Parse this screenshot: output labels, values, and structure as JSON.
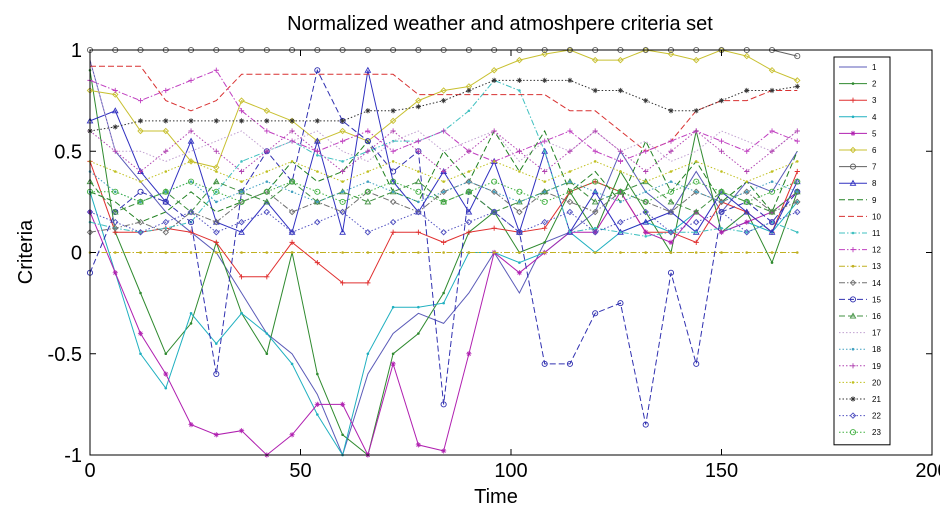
{
  "chart_data": {
    "type": "line",
    "title": "Normalized weather and atmoshpere criteria set",
    "xlabel": "Time",
    "ylabel": "Criteria",
    "xlim": [
      0,
      200
    ],
    "ylim": [
      -1,
      1
    ],
    "xticks": [
      0,
      50,
      100,
      150,
      200
    ],
    "yticks": [
      -1,
      -0.5,
      0,
      0.5,
      1
    ],
    "xtick_labels": [
      "0",
      "50",
      "100",
      "150",
      "200"
    ],
    "ytick_labels": [
      "-1",
      "-0.5",
      "0",
      "0.5",
      "1"
    ],
    "grid": false,
    "legend_position": "right",
    "x": [
      0,
      6,
      12,
      18,
      24,
      30,
      36,
      42,
      48,
      54,
      60,
      66,
      72,
      78,
      84,
      90,
      96,
      102,
      108,
      114,
      120,
      126,
      132,
      138,
      144,
      150,
      156,
      162,
      168
    ],
    "series": [
      {
        "name": "1",
        "color": "#5b5bb8",
        "marker": "none",
        "dash": "solid",
        "values": [
          0.95,
          0.5,
          0.35,
          0.2,
          0.1,
          0.0,
          -0.2,
          -0.4,
          -0.5,
          -0.7,
          -1.0,
          -0.6,
          -0.4,
          -0.3,
          -0.35,
          -0.2,
          0.0,
          -0.2,
          0.05,
          0.1,
          0.2,
          0.5,
          0.3,
          0.2,
          0.4,
          0.2,
          0.35,
          0.3,
          0.5
        ]
      },
      {
        "name": "2",
        "color": "#2f8a2f",
        "marker": "point",
        "dash": "solid",
        "values": [
          0.9,
          0.1,
          -0.2,
          -0.5,
          -0.35,
          0.05,
          -0.3,
          -0.5,
          0.0,
          -0.6,
          -0.9,
          -1.0,
          -0.5,
          -0.4,
          -0.2,
          0.1,
          0.2,
          0.0,
          0.05,
          0.3,
          0.1,
          0.4,
          0.2,
          0.0,
          0.6,
          0.1,
          0.2,
          -0.05,
          0.3
        ]
      },
      {
        "name": "3",
        "color": "#e03030",
        "marker": "plus",
        "dash": "solid",
        "values": [
          0.45,
          0.1,
          0.1,
          0.12,
          0.1,
          0.05,
          -0.12,
          -0.12,
          0.05,
          -0.05,
          -0.15,
          -0.15,
          0.1,
          0.1,
          0.05,
          0.1,
          0.12,
          0.1,
          0.12,
          0.3,
          0.35,
          0.3,
          0.1,
          0.1,
          0.05,
          0.25,
          0.2,
          0.1,
          0.4
        ]
      },
      {
        "name": "4",
        "color": "#20b0c0",
        "marker": "point",
        "dash": "solid",
        "values": [
          0.3,
          -0.1,
          -0.5,
          -0.67,
          -0.3,
          -0.45,
          -0.3,
          -0.4,
          -0.55,
          -0.8,
          -1.0,
          -0.5,
          -0.27,
          -0.27,
          -0.25,
          0.0,
          0.0,
          -0.05,
          0.0,
          0.1,
          0.0,
          0.1,
          0.15,
          0.1,
          0.2,
          0.1,
          0.15,
          0.1,
          0.25
        ]
      },
      {
        "name": "5",
        "color": "#b020b0",
        "marker": "star",
        "dash": "solid",
        "values": [
          0.2,
          -0.1,
          -0.4,
          -0.6,
          -0.85,
          -0.9,
          -0.88,
          -1.0,
          -0.9,
          -0.75,
          -0.75,
          -1.0,
          -0.55,
          -0.95,
          -0.98,
          -0.5,
          0.0,
          -0.1,
          0.0,
          0.1,
          0.1,
          0.3,
          0.1,
          0.05,
          0.2,
          0.1,
          0.15,
          0.2,
          0.3
        ]
      },
      {
        "name": "6",
        "color": "#c8c030",
        "marker": "diamond",
        "dash": "solid",
        "values": [
          0.8,
          0.78,
          0.6,
          0.6,
          0.45,
          0.42,
          0.75,
          0.7,
          0.65,
          0.55,
          0.6,
          0.55,
          0.65,
          0.75,
          0.8,
          0.82,
          0.9,
          0.95,
          0.98,
          1.0,
          0.95,
          0.95,
          1.0,
          0.98,
          0.95,
          1.0,
          0.97,
          0.9,
          0.85
        ]
      },
      {
        "name": "7",
        "color": "#606060",
        "marker": "circle",
        "dash": "solid",
        "values": [
          1.0,
          1.0,
          1.0,
          1.0,
          1.0,
          1.0,
          1.0,
          1.0,
          1.0,
          1.0,
          1.0,
          1.0,
          1.0,
          1.0,
          1.0,
          1.0,
          1.0,
          1.0,
          1.0,
          1.0,
          1.0,
          1.0,
          1.0,
          1.0,
          1.0,
          1.0,
          1.0,
          1.0,
          0.97
        ]
      },
      {
        "name": "8",
        "color": "#3030c0",
        "marker": "triangle",
        "dash": "solid",
        "values": [
          0.65,
          0.7,
          0.4,
          0.25,
          0.55,
          0.15,
          0.1,
          0.25,
          0.1,
          0.55,
          0.1,
          0.9,
          0.35,
          0.2,
          0.4,
          0.2,
          0.45,
          0.1,
          0.5,
          0.1,
          0.3,
          0.1,
          0.15,
          0.2,
          0.1,
          0.3,
          0.2,
          0.1,
          0.35
        ]
      },
      {
        "name": "9",
        "color": "#208020",
        "marker": "none",
        "dash": "dashed",
        "values": [
          0.3,
          0.25,
          0.15,
          0.2,
          0.3,
          0.2,
          0.25,
          0.3,
          0.45,
          0.35,
          0.4,
          0.55,
          0.3,
          0.25,
          0.5,
          0.35,
          0.6,
          0.4,
          0.6,
          0.3,
          0.4,
          0.25,
          0.55,
          0.3,
          0.45,
          0.25,
          0.35,
          0.2,
          0.5
        ]
      },
      {
        "name": "10",
        "color": "#d83030",
        "marker": "none",
        "dash": "dashed",
        "values": [
          0.92,
          0.92,
          0.92,
          0.75,
          0.7,
          0.75,
          0.88,
          0.88,
          0.88,
          0.88,
          0.88,
          0.88,
          0.88,
          0.78,
          0.78,
          0.78,
          0.78,
          0.78,
          0.78,
          0.7,
          0.7,
          0.6,
          0.5,
          0.55,
          0.7,
          0.75,
          0.75,
          0.8,
          0.8
        ]
      },
      {
        "name": "11",
        "color": "#40c0c0",
        "marker": "point",
        "dash": "dashdot",
        "values": [
          0.15,
          0.12,
          0.1,
          0.12,
          0.15,
          0.3,
          0.45,
          0.5,
          0.55,
          0.48,
          0.45,
          0.5,
          0.55,
          0.55,
          0.6,
          0.7,
          0.85,
          0.8,
          0.5,
          0.1,
          0.12,
          0.1,
          0.08,
          0.1,
          0.1,
          0.12,
          0.1,
          0.15,
          0.1
        ]
      },
      {
        "name": "12",
        "color": "#c040c0",
        "marker": "plus",
        "dash": "dashdot",
        "values": [
          0.85,
          0.8,
          0.75,
          0.8,
          0.85,
          0.9,
          0.7,
          0.6,
          0.55,
          0.5,
          0.55,
          0.6,
          0.5,
          0.55,
          0.6,
          0.5,
          0.45,
          0.5,
          0.55,
          0.6,
          0.5,
          0.45,
          0.5,
          0.55,
          0.6,
          0.55,
          0.5,
          0.6,
          0.55
        ]
      },
      {
        "name": "13",
        "color": "#c0b020",
        "marker": "point",
        "dash": "dashdot",
        "values": [
          0.0,
          0.0,
          0.0,
          0.0,
          0.0,
          0.0,
          0.0,
          0.0,
          0.0,
          0.0,
          0.0,
          0.0,
          0.0,
          0.0,
          0.0,
          0.0,
          0.0,
          0.0,
          0.0,
          0.0,
          0.0,
          0.0,
          0.0,
          0.0,
          0.0,
          0.0,
          0.0,
          0.0,
          0.0
        ]
      },
      {
        "name": "14",
        "color": "#707070",
        "marker": "diamond",
        "dash": "dashdot",
        "values": [
          0.1,
          0.12,
          0.15,
          0.1,
          0.2,
          0.15,
          0.25,
          0.3,
          0.2,
          0.25,
          0.2,
          0.3,
          0.25,
          0.2,
          0.3,
          0.35,
          0.3,
          0.2,
          0.3,
          0.25,
          0.2,
          0.3,
          0.25,
          0.2,
          0.3,
          0.25,
          0.3,
          0.2,
          0.25
        ]
      },
      {
        "name": "15",
        "color": "#3030b0",
        "marker": "circle",
        "dash": "dashed",
        "values": [
          -0.1,
          0.2,
          0.3,
          0.25,
          0.15,
          -0.6,
          0.3,
          0.5,
          0.35,
          0.9,
          0.65,
          0.55,
          0.4,
          0.5,
          -0.75,
          0.3,
          0.2,
          0.1,
          -0.55,
          -0.55,
          -0.3,
          -0.25,
          -0.85,
          -0.1,
          -0.55,
          0.2,
          0.25,
          0.15,
          0.3
        ]
      },
      {
        "name": "16",
        "color": "#409040",
        "marker": "triangle",
        "dash": "dashed",
        "values": [
          0.35,
          0.2,
          0.25,
          0.3,
          0.2,
          0.35,
          0.3,
          0.25,
          0.35,
          0.25,
          0.3,
          0.25,
          0.3,
          0.35,
          0.25,
          0.3,
          0.2,
          0.25,
          0.3,
          0.35,
          0.25,
          0.3,
          0.35,
          0.25,
          0.2,
          0.3,
          0.25,
          0.2,
          0.3
        ]
      },
      {
        "name": "17",
        "color": "#c0a0d0",
        "marker": "none",
        "dash": "dotted",
        "values": [
          0.95,
          0.5,
          0.5,
          0.45,
          0.5,
          0.55,
          0.6,
          0.5,
          0.55,
          0.6,
          0.5,
          0.45,
          0.55,
          0.6,
          0.5,
          0.55,
          0.6,
          0.45,
          0.55,
          0.5,
          0.6,
          0.5,
          0.55,
          0.45,
          0.5,
          0.6,
          0.55,
          0.5,
          0.6
        ]
      },
      {
        "name": "18",
        "color": "#40a0c0",
        "marker": "point",
        "dash": "dotted",
        "values": [
          0.4,
          0.3,
          0.25,
          0.3,
          0.35,
          0.25,
          0.3,
          0.35,
          0.3,
          0.25,
          0.3,
          0.35,
          0.3,
          0.25,
          0.3,
          0.35,
          0.3,
          0.25,
          0.3,
          0.35,
          0.3,
          0.25,
          0.3,
          0.35,
          0.3,
          0.25,
          0.3,
          0.35,
          0.3
        ]
      },
      {
        "name": "19",
        "color": "#b040b0",
        "marker": "plus",
        "dash": "dotted",
        "values": [
          0.6,
          0.5,
          0.4,
          0.5,
          0.6,
          0.5,
          0.4,
          0.5,
          0.6,
          0.5,
          0.4,
          0.5,
          0.6,
          0.5,
          0.4,
          0.5,
          0.6,
          0.5,
          0.4,
          0.5,
          0.6,
          0.5,
          0.4,
          0.5,
          0.6,
          0.5,
          0.4,
          0.5,
          0.6
        ]
      },
      {
        "name": "20",
        "color": "#c0c020",
        "marker": "point",
        "dash": "dotted",
        "values": [
          0.45,
          0.4,
          0.35,
          0.4,
          0.45,
          0.4,
          0.35,
          0.4,
          0.45,
          0.4,
          0.35,
          0.4,
          0.45,
          0.4,
          0.35,
          0.4,
          0.45,
          0.4,
          0.35,
          0.4,
          0.45,
          0.4,
          0.35,
          0.4,
          0.45,
          0.4,
          0.35,
          0.4,
          0.45
        ]
      },
      {
        "name": "21",
        "color": "#303030",
        "marker": "star",
        "dash": "dotted",
        "values": [
          0.6,
          0.62,
          0.65,
          0.65,
          0.65,
          0.65,
          0.65,
          0.65,
          0.65,
          0.65,
          0.65,
          0.7,
          0.7,
          0.72,
          0.75,
          0.8,
          0.85,
          0.85,
          0.85,
          0.85,
          0.8,
          0.8,
          0.75,
          0.7,
          0.7,
          0.75,
          0.8,
          0.8,
          0.82
        ]
      },
      {
        "name": "22",
        "color": "#5050c0",
        "marker": "diamond",
        "dash": "dotted",
        "values": [
          0.2,
          0.15,
          0.1,
          0.15,
          0.2,
          0.1,
          0.15,
          0.2,
          0.1,
          0.15,
          0.2,
          0.1,
          0.15,
          0.2,
          0.1,
          0.15,
          0.2,
          0.1,
          0.15,
          0.2,
          0.1,
          0.15,
          0.2,
          0.1,
          0.15,
          0.2,
          0.1,
          0.15,
          0.2
        ]
      },
      {
        "name": "23",
        "color": "#40b040",
        "marker": "circle",
        "dash": "dotted",
        "values": [
          0.3,
          0.3,
          0.25,
          0.3,
          0.35,
          0.3,
          0.25,
          0.3,
          0.35,
          0.3,
          0.25,
          0.3,
          0.35,
          0.3,
          0.25,
          0.3,
          0.35,
          0.3,
          0.25,
          0.3,
          0.35,
          0.3,
          0.25,
          0.3,
          0.35,
          0.3,
          0.25,
          0.3,
          0.35
        ]
      }
    ]
  }
}
